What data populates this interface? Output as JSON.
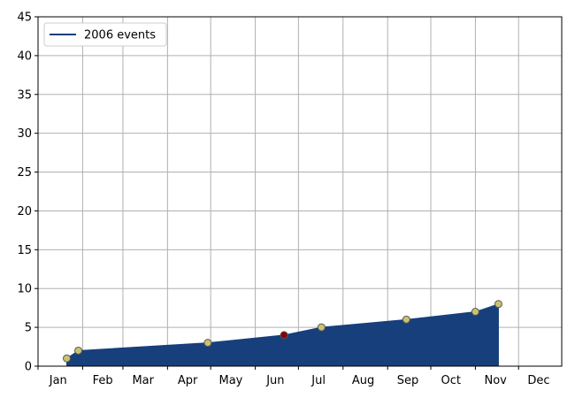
{
  "chart_data": {
    "type": "area",
    "title": "",
    "xlabel": "",
    "ylabel": "",
    "x_ticks": [
      "Jan",
      "Feb",
      "Mar",
      "Apr",
      "May",
      "Jun",
      "Jul",
      "Aug",
      "Sep",
      "Oct",
      "Nov",
      "Dec"
    ],
    "y_ticks": [
      0,
      5,
      10,
      15,
      20,
      25,
      30,
      35,
      40,
      45
    ],
    "ylim": [
      0,
      45
    ],
    "xlim": [
      "2006-01-01",
      "2006-12-31"
    ],
    "grid": true,
    "legend_position": "top-left",
    "series": [
      {
        "name": "2006 events",
        "color": "#173f7c",
        "points": [
          {
            "x": "2006-01-21",
            "y": 1
          },
          {
            "x": "2006-01-29",
            "y": 2
          },
          {
            "x": "2006-04-29",
            "y": 3
          },
          {
            "x": "2006-06-21",
            "y": 4
          },
          {
            "x": "2006-07-17",
            "y": 5
          },
          {
            "x": "2006-09-14",
            "y": 6
          },
          {
            "x": "2006-11-01",
            "y": 7
          },
          {
            "x": "2006-11-17",
            "y": 8
          }
        ]
      }
    ],
    "marker_color": "#c8c36e",
    "highlight_color": "#8b0000"
  }
}
